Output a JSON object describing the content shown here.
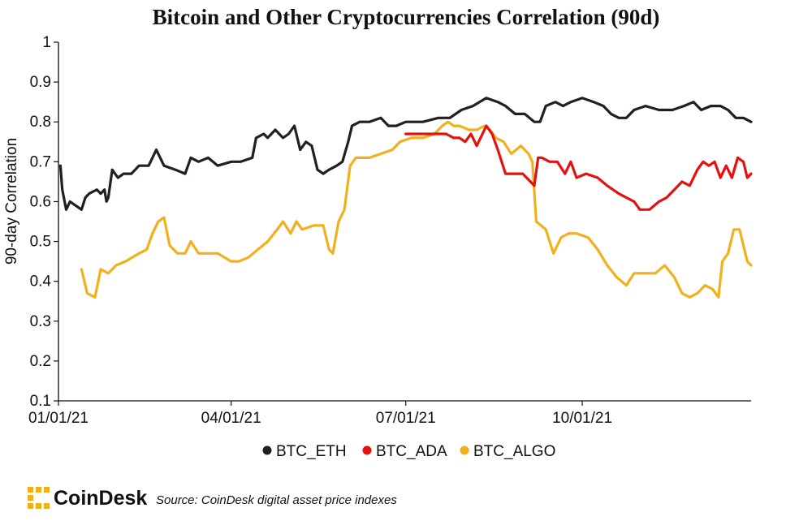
{
  "chart_data": {
    "type": "line",
    "title": "Bitcoin and Other Cryptocurrencies Correlation (90d)",
    "xlabel": "",
    "ylabel": "90-day Correlation",
    "x_ticks": [
      "01/01/21",
      "04/01/21",
      "07/01/21",
      "10/01/21"
    ],
    "y_ticks": [
      "0.1",
      "0.2",
      "0.3",
      "0.4",
      "0.5",
      "0.6",
      "0.7",
      "0.8",
      "0.9",
      "1"
    ],
    "ylim": [
      0.1,
      1
    ],
    "xlim": [
      "2021-01-01",
      "2021-12-28"
    ],
    "grid": false,
    "legend": "bottom",
    "series": [
      {
        "name": "BTC_ETH",
        "color": "#231f20",
        "points": [
          [
            "2021-01-02",
            0.69
          ],
          [
            "2021-01-03",
            0.63
          ],
          [
            "2021-01-05",
            0.58
          ],
          [
            "2021-01-07",
            0.6
          ],
          [
            "2021-01-10",
            0.59
          ],
          [
            "2021-01-13",
            0.58
          ],
          [
            "2021-01-15",
            0.61
          ],
          [
            "2021-01-17",
            0.62
          ],
          [
            "2021-01-21",
            0.63
          ],
          [
            "2021-01-23",
            0.62
          ],
          [
            "2021-01-25",
            0.63
          ],
          [
            "2021-01-26",
            0.6
          ],
          [
            "2021-01-27",
            0.61
          ],
          [
            "2021-01-29",
            0.68
          ],
          [
            "2021-02-01",
            0.66
          ],
          [
            "2021-02-04",
            0.67
          ],
          [
            "2021-02-08",
            0.67
          ],
          [
            "2021-02-12",
            0.69
          ],
          [
            "2021-02-17",
            0.69
          ],
          [
            "2021-02-21",
            0.73
          ],
          [
            "2021-02-25",
            0.69
          ],
          [
            "2021-03-03",
            0.68
          ],
          [
            "2021-03-08",
            0.67
          ],
          [
            "2021-03-11",
            0.71
          ],
          [
            "2021-03-15",
            0.7
          ],
          [
            "2021-03-20",
            0.71
          ],
          [
            "2021-03-25",
            0.69
          ],
          [
            "2021-04-01",
            0.7
          ],
          [
            "2021-04-06",
            0.7
          ],
          [
            "2021-04-12",
            0.71
          ],
          [
            "2021-04-14",
            0.76
          ],
          [
            "2021-04-18",
            0.77
          ],
          [
            "2021-04-20",
            0.76
          ],
          [
            "2021-04-24",
            0.78
          ],
          [
            "2021-04-28",
            0.76
          ],
          [
            "2021-05-01",
            0.77
          ],
          [
            "2021-05-04",
            0.79
          ],
          [
            "2021-05-07",
            0.73
          ],
          [
            "2021-05-10",
            0.75
          ],
          [
            "2021-05-13",
            0.74
          ],
          [
            "2021-05-16",
            0.68
          ],
          [
            "2021-05-19",
            0.67
          ],
          [
            "2021-05-22",
            0.68
          ],
          [
            "2021-05-26",
            0.69
          ],
          [
            "2021-05-29",
            0.7
          ],
          [
            "2021-06-01",
            0.75
          ],
          [
            "2021-06-03",
            0.79
          ],
          [
            "2021-06-07",
            0.8
          ],
          [
            "2021-06-12",
            0.8
          ],
          [
            "2021-06-18",
            0.81
          ],
          [
            "2021-06-22",
            0.79
          ],
          [
            "2021-06-26",
            0.79
          ],
          [
            "2021-07-01",
            0.8
          ],
          [
            "2021-07-10",
            0.8
          ],
          [
            "2021-07-18",
            0.81
          ],
          [
            "2021-07-24",
            0.81
          ],
          [
            "2021-07-30",
            0.83
          ],
          [
            "2021-08-05",
            0.84
          ],
          [
            "2021-08-12",
            0.86
          ],
          [
            "2021-08-18",
            0.85
          ],
          [
            "2021-08-22",
            0.84
          ],
          [
            "2021-08-27",
            0.82
          ],
          [
            "2021-09-01",
            0.82
          ],
          [
            "2021-09-06",
            0.8
          ],
          [
            "2021-09-09",
            0.8
          ],
          [
            "2021-09-12",
            0.84
          ],
          [
            "2021-09-17",
            0.85
          ],
          [
            "2021-09-21",
            0.84
          ],
          [
            "2021-09-25",
            0.85
          ],
          [
            "2021-10-01",
            0.86
          ],
          [
            "2021-10-07",
            0.85
          ],
          [
            "2021-10-12",
            0.84
          ],
          [
            "2021-10-16",
            0.82
          ],
          [
            "2021-10-20",
            0.81
          ],
          [
            "2021-10-24",
            0.81
          ],
          [
            "2021-10-28",
            0.83
          ],
          [
            "2021-11-03",
            0.84
          ],
          [
            "2021-11-10",
            0.83
          ],
          [
            "2021-11-17",
            0.83
          ],
          [
            "2021-11-23",
            0.84
          ],
          [
            "2021-11-28",
            0.85
          ],
          [
            "2021-12-02",
            0.83
          ],
          [
            "2021-12-07",
            0.84
          ],
          [
            "2021-12-12",
            0.84
          ],
          [
            "2021-12-16",
            0.83
          ],
          [
            "2021-12-20",
            0.81
          ],
          [
            "2021-12-24",
            0.81
          ],
          [
            "2021-12-28",
            0.8
          ]
        ]
      },
      {
        "name": "BTC_ADA",
        "color": "#e5110f",
        "points": [
          [
            "2021-07-01",
            0.77
          ],
          [
            "2021-07-08",
            0.77
          ],
          [
            "2021-07-15",
            0.77
          ],
          [
            "2021-07-22",
            0.77
          ],
          [
            "2021-07-26",
            0.76
          ],
          [
            "2021-07-29",
            0.76
          ],
          [
            "2021-08-01",
            0.75
          ],
          [
            "2021-08-04",
            0.77
          ],
          [
            "2021-08-07",
            0.74
          ],
          [
            "2021-08-09",
            0.76
          ],
          [
            "2021-08-12",
            0.79
          ],
          [
            "2021-08-15",
            0.77
          ],
          [
            "2021-08-18",
            0.73
          ],
          [
            "2021-08-20",
            0.7
          ],
          [
            "2021-08-22",
            0.67
          ],
          [
            "2021-08-26",
            0.67
          ],
          [
            "2021-08-31",
            0.67
          ],
          [
            "2021-09-04",
            0.65
          ],
          [
            "2021-09-06",
            0.64
          ],
          [
            "2021-09-08",
            0.71
          ],
          [
            "2021-09-10",
            0.71
          ],
          [
            "2021-09-14",
            0.7
          ],
          [
            "2021-09-18",
            0.7
          ],
          [
            "2021-09-22",
            0.67
          ],
          [
            "2021-09-25",
            0.7
          ],
          [
            "2021-09-28",
            0.66
          ],
          [
            "2021-10-03",
            0.67
          ],
          [
            "2021-10-09",
            0.66
          ],
          [
            "2021-10-14",
            0.64
          ],
          [
            "2021-10-20",
            0.62
          ],
          [
            "2021-10-24",
            0.61
          ],
          [
            "2021-10-28",
            0.6
          ],
          [
            "2021-10-31",
            0.58
          ],
          [
            "2021-11-05",
            0.58
          ],
          [
            "2021-11-10",
            0.6
          ],
          [
            "2021-11-14",
            0.61
          ],
          [
            "2021-11-18",
            0.63
          ],
          [
            "2021-11-22",
            0.65
          ],
          [
            "2021-11-26",
            0.64
          ],
          [
            "2021-11-30",
            0.68
          ],
          [
            "2021-12-03",
            0.7
          ],
          [
            "2021-12-06",
            0.69
          ],
          [
            "2021-12-09",
            0.7
          ],
          [
            "2021-12-12",
            0.66
          ],
          [
            "2021-12-15",
            0.69
          ],
          [
            "2021-12-18",
            0.66
          ],
          [
            "2021-12-21",
            0.71
          ],
          [
            "2021-12-24",
            0.7
          ],
          [
            "2021-12-26",
            0.66
          ],
          [
            "2021-12-28",
            0.67
          ]
        ]
      },
      {
        "name": "BTC_ALGO",
        "color": "#f1b01c",
        "points": [
          [
            "2021-01-13",
            0.43
          ],
          [
            "2021-01-16",
            0.37
          ],
          [
            "2021-01-20",
            0.36
          ],
          [
            "2021-01-23",
            0.43
          ],
          [
            "2021-01-27",
            0.42
          ],
          [
            "2021-01-31",
            0.44
          ],
          [
            "2021-02-05",
            0.45
          ],
          [
            "2021-02-12",
            0.47
          ],
          [
            "2021-02-16",
            0.48
          ],
          [
            "2021-02-19",
            0.52
          ],
          [
            "2021-02-22",
            0.55
          ],
          [
            "2021-02-25",
            0.56
          ],
          [
            "2021-02-28",
            0.49
          ],
          [
            "2021-03-04",
            0.47
          ],
          [
            "2021-03-08",
            0.47
          ],
          [
            "2021-03-11",
            0.5
          ],
          [
            "2021-03-15",
            0.47
          ],
          [
            "2021-03-20",
            0.47
          ],
          [
            "2021-03-25",
            0.47
          ],
          [
            "2021-04-01",
            0.45
          ],
          [
            "2021-04-05",
            0.45
          ],
          [
            "2021-04-10",
            0.46
          ],
          [
            "2021-04-15",
            0.48
          ],
          [
            "2021-04-20",
            0.5
          ],
          [
            "2021-04-25",
            0.53
          ],
          [
            "2021-04-28",
            0.55
          ],
          [
            "2021-05-02",
            0.52
          ],
          [
            "2021-05-05",
            0.55
          ],
          [
            "2021-05-08",
            0.53
          ],
          [
            "2021-05-14",
            0.54
          ],
          [
            "2021-05-19",
            0.54
          ],
          [
            "2021-05-22",
            0.48
          ],
          [
            "2021-05-24",
            0.47
          ],
          [
            "2021-05-27",
            0.55
          ],
          [
            "2021-05-30",
            0.58
          ],
          [
            "2021-06-02",
            0.69
          ],
          [
            "2021-06-05",
            0.71
          ],
          [
            "2021-06-12",
            0.71
          ],
          [
            "2021-06-18",
            0.72
          ],
          [
            "2021-06-24",
            0.73
          ],
          [
            "2021-06-28",
            0.75
          ],
          [
            "2021-07-04",
            0.76
          ],
          [
            "2021-07-10",
            0.76
          ],
          [
            "2021-07-16",
            0.77
          ],
          [
            "2021-07-20",
            0.79
          ],
          [
            "2021-07-23",
            0.8
          ],
          [
            "2021-07-26",
            0.79
          ],
          [
            "2021-07-29",
            0.79
          ],
          [
            "2021-08-03",
            0.78
          ],
          [
            "2021-08-07",
            0.78
          ],
          [
            "2021-08-11",
            0.79
          ],
          [
            "2021-08-14",
            0.78
          ],
          [
            "2021-08-17",
            0.76
          ],
          [
            "2021-08-21",
            0.75
          ],
          [
            "2021-08-25",
            0.72
          ],
          [
            "2021-08-30",
            0.74
          ],
          [
            "2021-09-03",
            0.72
          ],
          [
            "2021-09-05",
            0.7
          ],
          [
            "2021-09-07",
            0.55
          ],
          [
            "2021-09-12",
            0.53
          ],
          [
            "2021-09-16",
            0.47
          ],
          [
            "2021-09-20",
            0.51
          ],
          [
            "2021-09-24",
            0.52
          ],
          [
            "2021-09-28",
            0.52
          ],
          [
            "2021-10-04",
            0.51
          ],
          [
            "2021-10-09",
            0.48
          ],
          [
            "2021-10-14",
            0.44
          ],
          [
            "2021-10-19",
            0.41
          ],
          [
            "2021-10-24",
            0.39
          ],
          [
            "2021-10-28",
            0.42
          ],
          [
            "2021-11-02",
            0.42
          ],
          [
            "2021-11-08",
            0.42
          ],
          [
            "2021-11-13",
            0.44
          ],
          [
            "2021-11-18",
            0.41
          ],
          [
            "2021-11-22",
            0.37
          ],
          [
            "2021-11-26",
            0.36
          ],
          [
            "2021-11-30",
            0.37
          ],
          [
            "2021-12-04",
            0.39
          ],
          [
            "2021-12-08",
            0.38
          ],
          [
            "2021-12-11",
            0.36
          ],
          [
            "2021-12-13",
            0.45
          ],
          [
            "2021-12-16",
            0.47
          ],
          [
            "2021-12-19",
            0.53
          ],
          [
            "2021-12-22",
            0.53
          ],
          [
            "2021-12-24",
            0.49
          ],
          [
            "2021-12-26",
            0.45
          ],
          [
            "2021-12-28",
            0.44
          ]
        ]
      }
    ]
  },
  "footer": {
    "brand": "CoinDesk",
    "source": "Source: CoinDesk digital asset price indexes",
    "brand_color": "#f1b01c"
  }
}
